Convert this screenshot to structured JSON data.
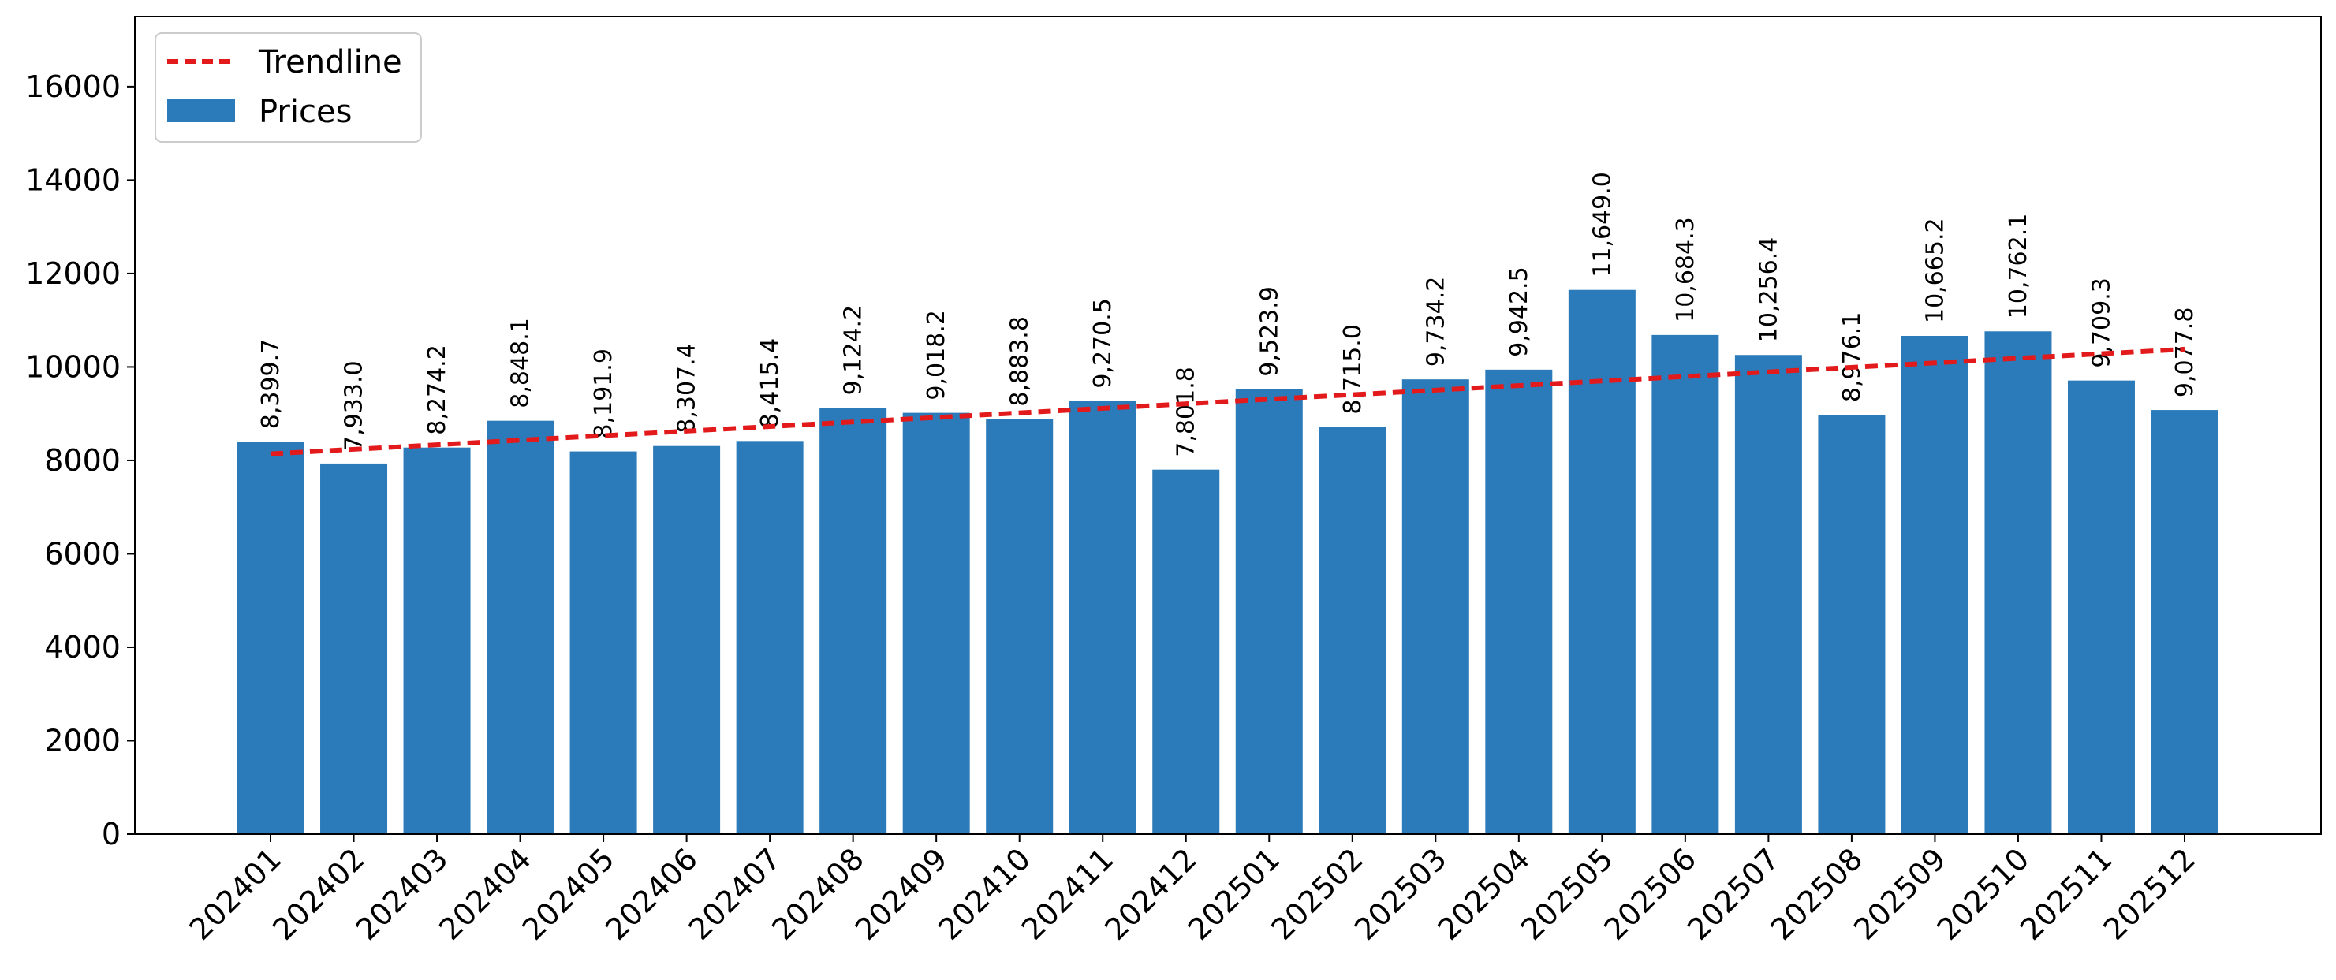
{
  "chart_data": {
    "type": "bar",
    "categories": [
      "202401",
      "202402",
      "202403",
      "202404",
      "202405",
      "202406",
      "202407",
      "202408",
      "202409",
      "202410",
      "202411",
      "202412",
      "202501",
      "202502",
      "202503",
      "202504",
      "202505",
      "202506",
      "202507",
      "202508",
      "202509",
      "202510",
      "202511",
      "202512"
    ],
    "series": [
      {
        "name": "Prices",
        "color": "#2b7bba",
        "values": [
          8399.7,
          7933.0,
          8274.2,
          8848.1,
          8191.9,
          8307.4,
          8415.4,
          9124.2,
          9018.2,
          8883.8,
          9270.5,
          7801.8,
          9523.9,
          8715.0,
          9734.2,
          9942.5,
          11649.0,
          10684.3,
          10256.4,
          8976.1,
          10665.2,
          10762.1,
          9709.3,
          9077.8
        ],
        "data_labels": [
          "8,399.7",
          "7,933.0",
          "8,274.2",
          "8,848.1",
          "8,191.9",
          "8,307.4",
          "8,415.4",
          "9,124.2",
          "9,018.2",
          "8,883.8",
          "9,270.5",
          "7,801.8",
          "9,523.9",
          "8,715.0",
          "9,734.2",
          "9,942.5",
          "11,649.0",
          "10,684.3",
          "10,256.4",
          "8,976.1",
          "10,665.2",
          "10,762.1",
          "9,709.3",
          "9,077.8"
        ]
      }
    ],
    "trendline": {
      "name": "Trendline",
      "color": "#e31a1c",
      "style": "dashed",
      "start": 8140,
      "end": 10380
    },
    "title": "",
    "xlabel": "",
    "ylabel": "",
    "ylim": [
      0,
      17500
    ],
    "yticks": [
      0,
      2000,
      4000,
      6000,
      8000,
      10000,
      12000,
      14000,
      16000
    ],
    "xtick_rotation": 45,
    "grid": false,
    "legend": {
      "position": "top-left",
      "entries": [
        "Trendline",
        "Prices"
      ]
    }
  }
}
